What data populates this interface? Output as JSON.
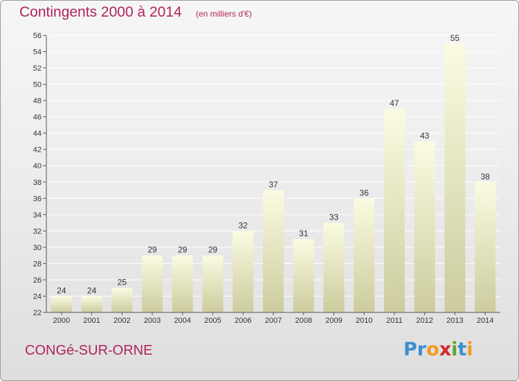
{
  "header": {
    "title": "Contingents 2000 à 2014",
    "subtitle": "(en milliers d'€)"
  },
  "footer": {
    "commune": "CONGé-SUR-ORNE",
    "logo": {
      "letters": [
        "P",
        "r",
        "o",
        "x",
        "i",
        "t",
        "i"
      ],
      "colors": [
        "#3a8fd0",
        "#3a8fd0",
        "#f39a1f",
        "#d02a2a",
        "#5aaa2a",
        "#3a8fd0",
        "#f39a1f"
      ]
    }
  },
  "colors": {
    "title": "#b0245c",
    "bar_top": "#fbfbe2",
    "bar_bottom": "#cccc9e",
    "grid": "#ffffff",
    "axis_text": "#333333"
  },
  "chart_data": {
    "type": "bar",
    "categories": [
      "2000",
      "2001",
      "2002",
      "2003",
      "2004",
      "2005",
      "2006",
      "2007",
      "2008",
      "2009",
      "2010",
      "2011",
      "2012",
      "2013",
      "2014"
    ],
    "values": [
      24,
      24,
      25,
      29,
      29,
      29,
      32,
      37,
      31,
      33,
      36,
      47,
      43,
      55,
      38
    ],
    "ylim": [
      22,
      56
    ],
    "yticks": [
      22,
      24,
      26,
      28,
      30,
      32,
      34,
      36,
      38,
      40,
      42,
      44,
      46,
      48,
      50,
      52,
      54,
      56
    ],
    "grid": true,
    "data_labels": true
  }
}
